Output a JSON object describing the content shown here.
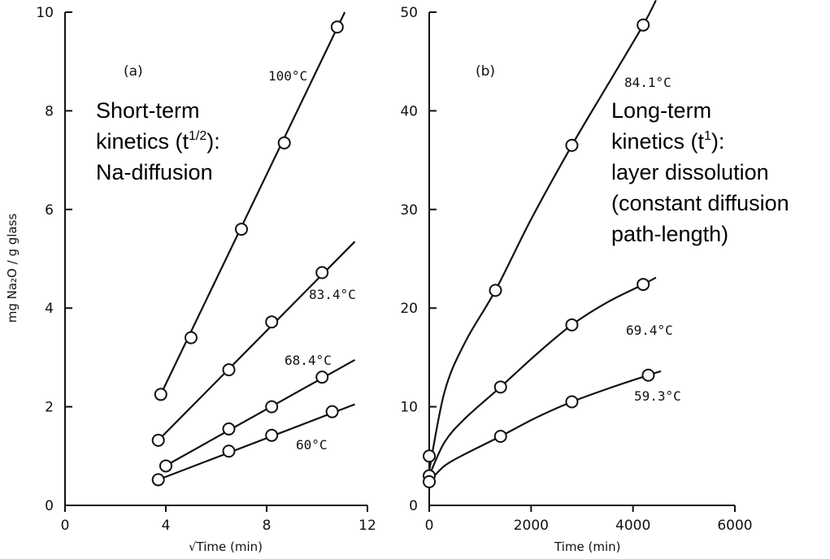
{
  "ylabel": "mg  Na₂O  /  g  glass",
  "chart_data": [
    {
      "type": "scatter",
      "panel_label": "(a)",
      "xlabel": "√Time (min)",
      "ylabel": "mg  Na₂O  /  g  glass",
      "xlim": [
        0,
        12
      ],
      "ylim": [
        0,
        10
      ],
      "xticks": [
        0,
        4,
        8,
        12
      ],
      "yticks": [
        0,
        2,
        4,
        6,
        8,
        10
      ],
      "note_lines": [
        "Short-term",
        "kinetics (t",
        "1/2",
        "):",
        "Na-diffusion"
      ],
      "series": [
        {
          "name": "100°C",
          "x": [
            3.8,
            5.0,
            7.0,
            8.7,
            10.8
          ],
          "y": [
            2.25,
            3.4,
            5.6,
            7.35,
            9.7
          ],
          "fit": "linear",
          "fit_x": [
            3.8,
            11.1
          ],
          "fit_y": [
            2.25,
            10.0
          ]
        },
        {
          "name": "83.4°C",
          "x": [
            3.7,
            6.5,
            8.2,
            10.2
          ],
          "y": [
            1.32,
            2.75,
            3.72,
            4.72
          ],
          "fit": "linear",
          "fit_x": [
            3.7,
            11.5
          ],
          "fit_y": [
            1.32,
            5.35
          ]
        },
        {
          "name": "68.4°C",
          "x": [
            4.0,
            6.5,
            8.2,
            10.2
          ],
          "y": [
            0.8,
            1.55,
            2.0,
            2.6
          ],
          "fit": "linear",
          "fit_x": [
            3.8,
            11.5
          ],
          "fit_y": [
            0.75,
            2.95
          ]
        },
        {
          "name": "60°C",
          "x": [
            3.7,
            6.5,
            8.2,
            10.6
          ],
          "y": [
            0.52,
            1.1,
            1.42,
            1.9
          ],
          "fit": "linear",
          "fit_x": [
            3.7,
            11.5
          ],
          "fit_y": [
            0.52,
            2.05
          ]
        }
      ]
    },
    {
      "type": "scatter",
      "panel_label": "(b)",
      "xlabel": "Time (min)",
      "ylabel": "",
      "xlim": [
        0,
        6000
      ],
      "ylim": [
        0,
        50
      ],
      "xticks": [
        0,
        2000,
        4000,
        6000
      ],
      "yticks": [
        0,
        10,
        20,
        30,
        40,
        50
      ],
      "note_lines": [
        "Long-term",
        "kinetics (t",
        "1",
        "):",
        "layer dissolution",
        "(constant diffusion",
        "path-length)"
      ],
      "series": [
        {
          "name": "84.1°C",
          "x": [
            0,
            1300,
            2800,
            4200
          ],
          "y": [
            5.0,
            21.8,
            36.5,
            48.7
          ],
          "fit": "smooth",
          "fit_x": [
            0,
            300,
            700,
            1300,
            2000,
            2800,
            3500,
            4200,
            4450
          ],
          "fit_y": [
            3.5,
            11.5,
            16.5,
            21.8,
            29.0,
            36.5,
            42.6,
            48.7,
            51.2
          ]
        },
        {
          "name": "69.4°C",
          "x": [
            0,
            1400,
            2800,
            4200
          ],
          "y": [
            3.0,
            12.0,
            18.3,
            22.4
          ],
          "fit": "smooth",
          "fit_x": [
            0,
            300,
            700,
            1400,
            2100,
            2800,
            3500,
            4200,
            4450
          ],
          "fit_y": [
            3.0,
            6.4,
            8.8,
            12.0,
            15.3,
            18.3,
            20.6,
            22.4,
            23.1
          ]
        },
        {
          "name": "59.3°C",
          "x": [
            0,
            1400,
            2800,
            4300
          ],
          "y": [
            2.4,
            7.0,
            10.5,
            13.2
          ],
          "fit": "smooth",
          "fit_x": [
            0,
            300,
            700,
            1400,
            2100,
            2800,
            3600,
            4300,
            4550
          ],
          "fit_y": [
            2.4,
            4.0,
            5.2,
            7.0,
            8.9,
            10.5,
            12.0,
            13.2,
            13.6
          ]
        }
      ]
    }
  ]
}
